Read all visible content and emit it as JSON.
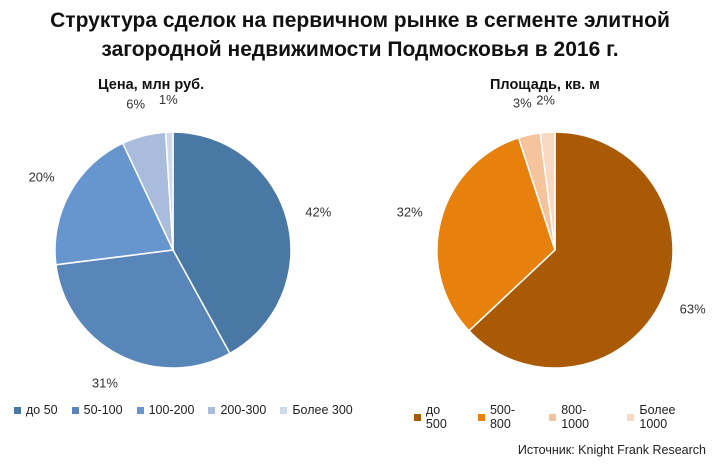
{
  "title_line1": "Структура сделок на первичном рынке в сегменте элитной",
  "title_line2": "загородной недвижимости Подмосковья в 2016 г.",
  "source": "Источник: Knight Frank Research",
  "chart_data": [
    {
      "type": "pie",
      "title": "Цена, млн руб.",
      "categories": [
        "до 50",
        "50-100",
        "100-200",
        "200-300",
        "Более 300"
      ],
      "values": [
        42,
        31,
        20,
        6,
        1
      ],
      "labels": [
        "42%",
        "31%",
        "20%",
        "6%",
        "1%"
      ],
      "colors": [
        "#4a78a5",
        "#5886b8",
        "#6796ce",
        "#a9bcdb",
        "#ced9ea"
      ],
      "legend_position": "bottom"
    },
    {
      "type": "pie",
      "title": "Площадь, кв. м",
      "categories": [
        "до 500",
        "500-800",
        "800-1000",
        "Более 1000"
      ],
      "values": [
        63,
        32,
        3,
        2
      ],
      "labels": [
        "63%",
        "32%",
        "3%",
        "2%"
      ],
      "colors": [
        "#aa5a04",
        "#e8800e",
        "#f5c39c",
        "#f9d9c1"
      ],
      "legend_position": "bottom"
    }
  ]
}
